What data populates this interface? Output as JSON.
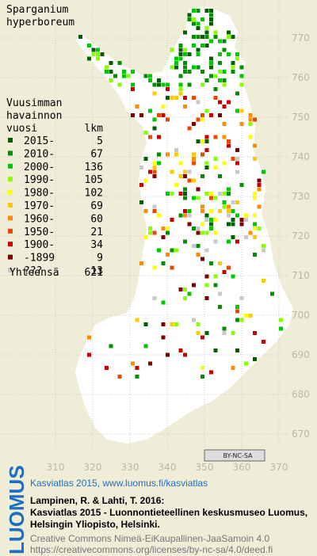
{
  "species": [
    "Sparganium",
    "hyperboreum"
  ],
  "legend": {
    "heading": [
      "Vuusimman",
      "havainnon"
    ],
    "col_year": "vuosi",
    "col_count": "lkm",
    "items": [
      {
        "label": "2015-",
        "count": 5,
        "color": "#006000"
      },
      {
        "label": "2010-",
        "count": 67,
        "color": "#009000"
      },
      {
        "label": "2000-",
        "count": 136,
        "color": "#00c800"
      },
      {
        "label": "1990-",
        "count": 105,
        "color": "#88ff00"
      },
      {
        "label": "1980-",
        "count": 102,
        "color": "#ffff00"
      },
      {
        "label": "1970-",
        "count": 69,
        "color": "#ffc800"
      },
      {
        "label": "1960-",
        "count": 60,
        "color": "#ff8c00"
      },
      {
        "label": "1950-",
        "count": 21,
        "color": "#e84800"
      },
      {
        "label": "1900-",
        "count": 34,
        "color": "#c80000"
      },
      {
        "label": "-1899",
        "count": 9,
        "color": "#800000"
      },
      {
        "label": "???",
        "count": 13,
        "color": "#c8c8c8"
      }
    ],
    "total": {
      "label": "Yhteensä",
      "count": 621
    }
  },
  "map": {
    "x_ticks": [
      310,
      320,
      330,
      340,
      350,
      360,
      370
    ],
    "y_ticks": [
      670,
      680,
      690,
      700,
      710,
      720,
      730,
      740,
      750,
      760,
      770
    ],
    "license_badge": "BY-NC-SA"
  },
  "footer": {
    "logo": "LUOMUS",
    "headline": "Kasviatlas 2015, www.luomus.fi/kasviatlas",
    "citation": [
      "Lampinen, R. & Lahti, T. 2016:",
      "Kasviatlas 2015 - Luonnontieteellinen keskusmuseo Luomus,",
      "Helsingin Yliopisto, Helsinki."
    ],
    "license": [
      "Creative Commons Nimeä-EiKaupallinen-JaaSamoin 4.0",
      "https://creativecommons.org/licenses/by-nc-sa/4.0/deed.fi"
    ]
  }
}
